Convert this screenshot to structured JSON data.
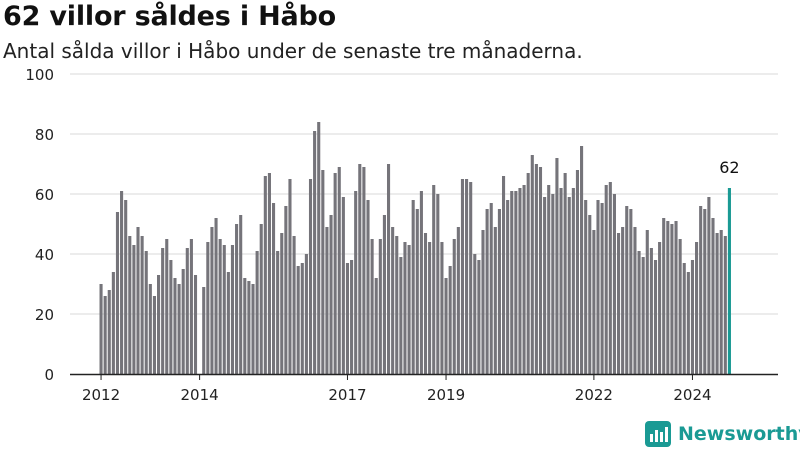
{
  "chart_data": {
    "type": "bar",
    "title": "62 villor såldes i Håbo",
    "subtitle": "Antal sålda villor i Håbo under de senaste tre månaderna.",
    "xlabel": "",
    "ylabel": "",
    "ylim": [
      0,
      100
    ],
    "yticks": [
      "0",
      "20",
      "40",
      "60",
      "80",
      "100"
    ],
    "xticks": [
      {
        "label": "2012",
        "index": 0
      },
      {
        "label": "2014",
        "index": 24
      },
      {
        "label": "2017",
        "index": 60
      },
      {
        "label": "2019",
        "index": 84
      },
      {
        "label": "2022",
        "index": 120
      },
      {
        "label": "2024",
        "index": 144
      }
    ],
    "grid": true,
    "legend": "none",
    "series": [
      {
        "values": [
          30,
          26,
          28,
          34,
          54,
          61,
          58,
          46,
          43,
          49,
          46,
          41,
          30,
          26,
          33,
          42,
          45,
          38,
          32,
          30,
          35,
          42,
          45,
          33,
          null,
          29,
          44,
          49,
          52,
          45,
          43,
          34,
          43,
          50,
          53,
          32,
          31,
          30,
          41,
          50,
          66,
          67,
          57,
          41,
          47,
          56,
          65,
          46,
          36,
          37,
          40,
          65,
          81,
          84,
          68,
          49,
          53,
          67,
          69,
          59,
          37,
          38,
          61,
          70,
          69,
          58,
          45,
          32,
          45,
          53,
          70,
          49,
          46,
          39,
          44,
          43,
          58,
          55,
          61,
          47,
          44,
          63,
          60,
          44,
          32,
          36,
          45,
          49,
          65,
          65,
          64,
          40,
          38,
          48,
          55,
          57,
          49,
          55,
          66,
          58,
          61,
          61,
          62,
          63,
          67,
          73,
          70,
          69,
          59,
          63,
          60,
          72,
          62,
          67,
          59,
          62,
          68,
          76,
          58,
          53,
          48,
          58,
          57,
          63,
          64,
          60,
          47,
          49,
          56,
          55,
          49,
          41,
          39,
          48,
          42,
          38,
          44,
          52,
          51,
          50,
          51,
          45,
          37,
          34,
          38,
          44,
          56,
          55,
          59,
          52,
          47,
          48,
          46,
          62
        ]
      }
    ],
    "highlight": {
      "label": "62",
      "color": "#1a9a94"
    },
    "bar_color": "#75747a"
  },
  "brand": {
    "name": "Newsworthy",
    "color": "#1a9a94",
    "icon": "newsworthy-logo-icon"
  }
}
